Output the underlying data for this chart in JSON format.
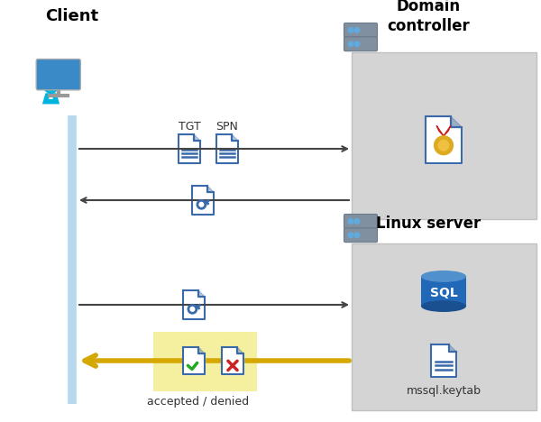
{
  "background_color": "#ffffff",
  "client_label": "Client",
  "domain_label": "Domain\ncontroller",
  "linux_label": "Linux server",
  "tgt_label": "TGT",
  "spn_label": "SPN",
  "accepted_denied_label": "accepted / denied",
  "mssql_label": "mssql.keytab",
  "client_line_color": "#b8d8f0",
  "arrow_color": "#444444",
  "yellow_arrow_color": "#d4a800",
  "yellow_bg": "#f5f0a0",
  "server_bg": "#d4d4d4",
  "doc_color": "#3a6aaa",
  "sql_blue_dark": "#1a5090",
  "sql_blue_mid": "#2268b8",
  "sql_blue_light": "#5090cc",
  "check_color": "#22aa22",
  "cross_color": "#cc2222",
  "cert_gold": "#ddaa22",
  "cert_red": "#cc2222",
  "person_blue": "#00b4e0",
  "monitor_blue": "#3a8ac8",
  "server_dark": "#5a6a7a",
  "server_mid": "#8090a0",
  "server_light": "#60aadd"
}
